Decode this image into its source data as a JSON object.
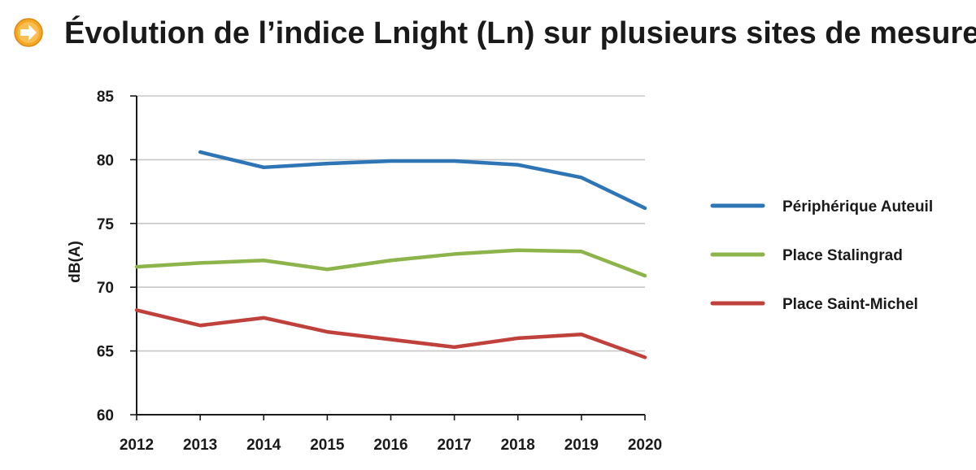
{
  "title": "Évolution de l’indice Lnight (Ln) sur plusieurs sites de mesure",
  "icon": "arrow-right-circle-icon",
  "colors": {
    "icon_fill": "#f5a623",
    "grid": "#c8c8c8",
    "axis": "#1a1a1a"
  },
  "chart_data": {
    "type": "line",
    "title": "Évolution de l’indice Lnight (Ln) sur plusieurs sites de mesure",
    "xlabel": "",
    "ylabel": "dB(A)",
    "x": [
      2012,
      2013,
      2014,
      2015,
      2016,
      2017,
      2018,
      2019,
      2020
    ],
    "x_tick_labels": [
      "2012",
      "2013",
      "2014",
      "2015",
      "2016",
      "2017",
      "2018",
      "2019",
      "2020"
    ],
    "ylim": [
      60,
      85
    ],
    "y_ticks": [
      60,
      65,
      70,
      75,
      80,
      85
    ],
    "y_tick_labels": [
      "60",
      "65",
      "70",
      "75",
      "80",
      "85"
    ],
    "grid": true,
    "legend_position": "right",
    "series": [
      {
        "name": "Périphérique Auteuil",
        "color": "#2e75b6",
        "values": [
          null,
          80.6,
          79.4,
          79.7,
          79.9,
          79.9,
          79.6,
          78.6,
          76.2
        ]
      },
      {
        "name": "Place Stalingrad",
        "color": "#8cb44a",
        "values": [
          71.6,
          71.9,
          72.1,
          71.4,
          72.1,
          72.6,
          72.9,
          72.8,
          70.9
        ]
      },
      {
        "name": "Place Saint-Michel",
        "color": "#c0413b",
        "values": [
          68.2,
          67.0,
          67.6,
          66.5,
          65.9,
          65.3,
          66.0,
          66.3,
          64.5
        ]
      }
    ]
  }
}
